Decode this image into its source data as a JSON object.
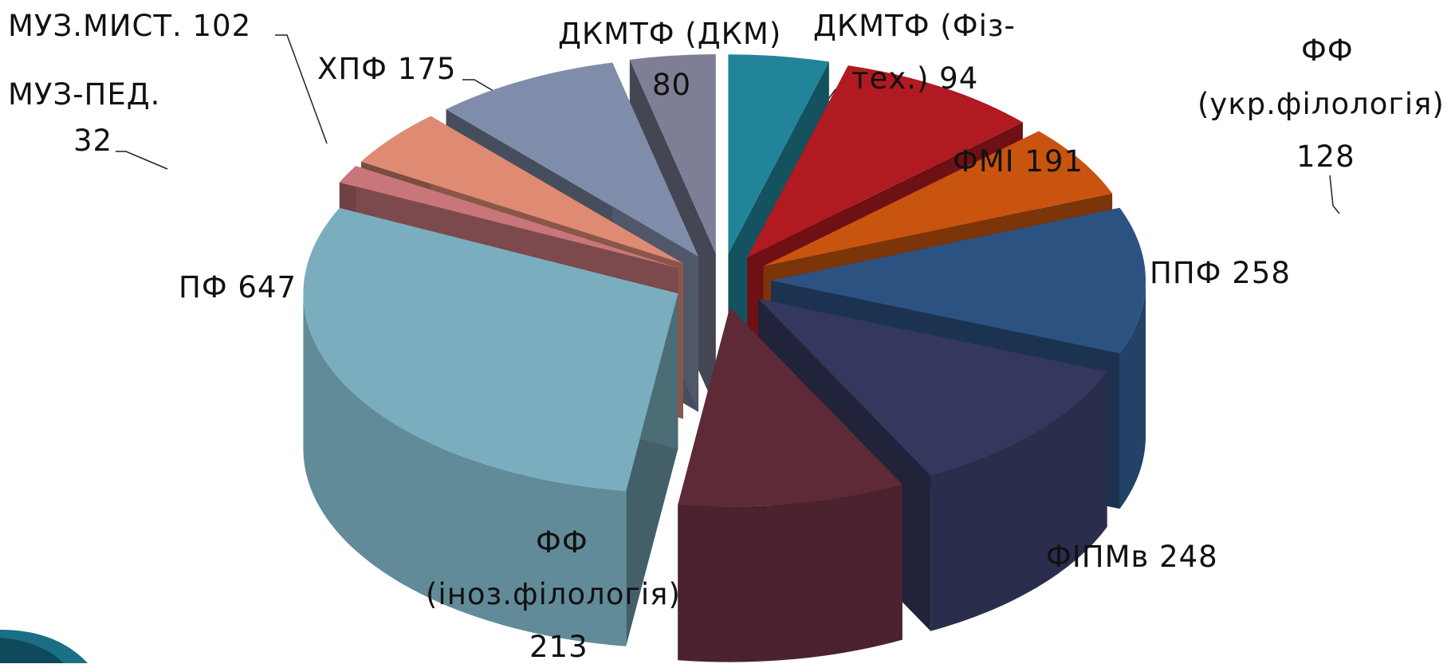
{
  "chart_data": {
    "type": "pie",
    "title": "",
    "exploded": true,
    "three_d": true,
    "legend": "none",
    "slices": [
      {
        "label": "ДКМТФ (Фіз-тех.)",
        "value": 94,
        "color": "#22849a"
      },
      {
        "label": "ФМІ",
        "value": 191,
        "color": "#b11a21"
      },
      {
        "label": "ФФ (укр.філологія)",
        "value": 128,
        "color": "#c8540f"
      },
      {
        "label": "ППФ",
        "value": 258,
        "color": "#2c5282"
      },
      {
        "label": "ФІПМв",
        "value": 248,
        "color": "#34385e"
      },
      {
        "label": "ФФ (іноз.філологія)",
        "value": 213,
        "color": "#5e2a38"
      },
      {
        "label": "ПФ",
        "value": 647,
        "color": "#7aaebf"
      },
      {
        "label": "МУЗ-ПЕД.",
        "value": 32,
        "color": "#c8767a"
      },
      {
        "label": "МУЗ.МИСТ.",
        "value": 102,
        "color": "#df8b74"
      },
      {
        "label": "ХПФ",
        "value": 175,
        "color": "#7f8daa"
      },
      {
        "label": "ДКМТФ (ДКМ)",
        "value": 80,
        "color": "#7e7f96"
      }
    ]
  },
  "labels": {
    "muz_myst": "МУЗ.МИСТ. 102",
    "muz_ped_name": "МУЗ-ПЕД.",
    "muz_ped_value": "32",
    "hpf": "ХПФ 175",
    "dkm_name": "ДКМТФ (ДКМ)",
    "dkm_value": "80",
    "fiz_name": "ДКМТФ (Фіз-",
    "fiz_value": "тех.) 94",
    "ff_ukr_1": "ФФ",
    "ff_ukr_2": "(укр.філологія)",
    "ff_ukr_3": "128",
    "fmi": "ФМІ 191",
    "ppf": "ППФ 258",
    "pf": "ПФ 647",
    "fipmv": "ФІПМв 248",
    "ff_inoz_1": "ФФ",
    "ff_inoz_2": "(іноз.філологія)",
    "ff_inoz_3": "213"
  }
}
